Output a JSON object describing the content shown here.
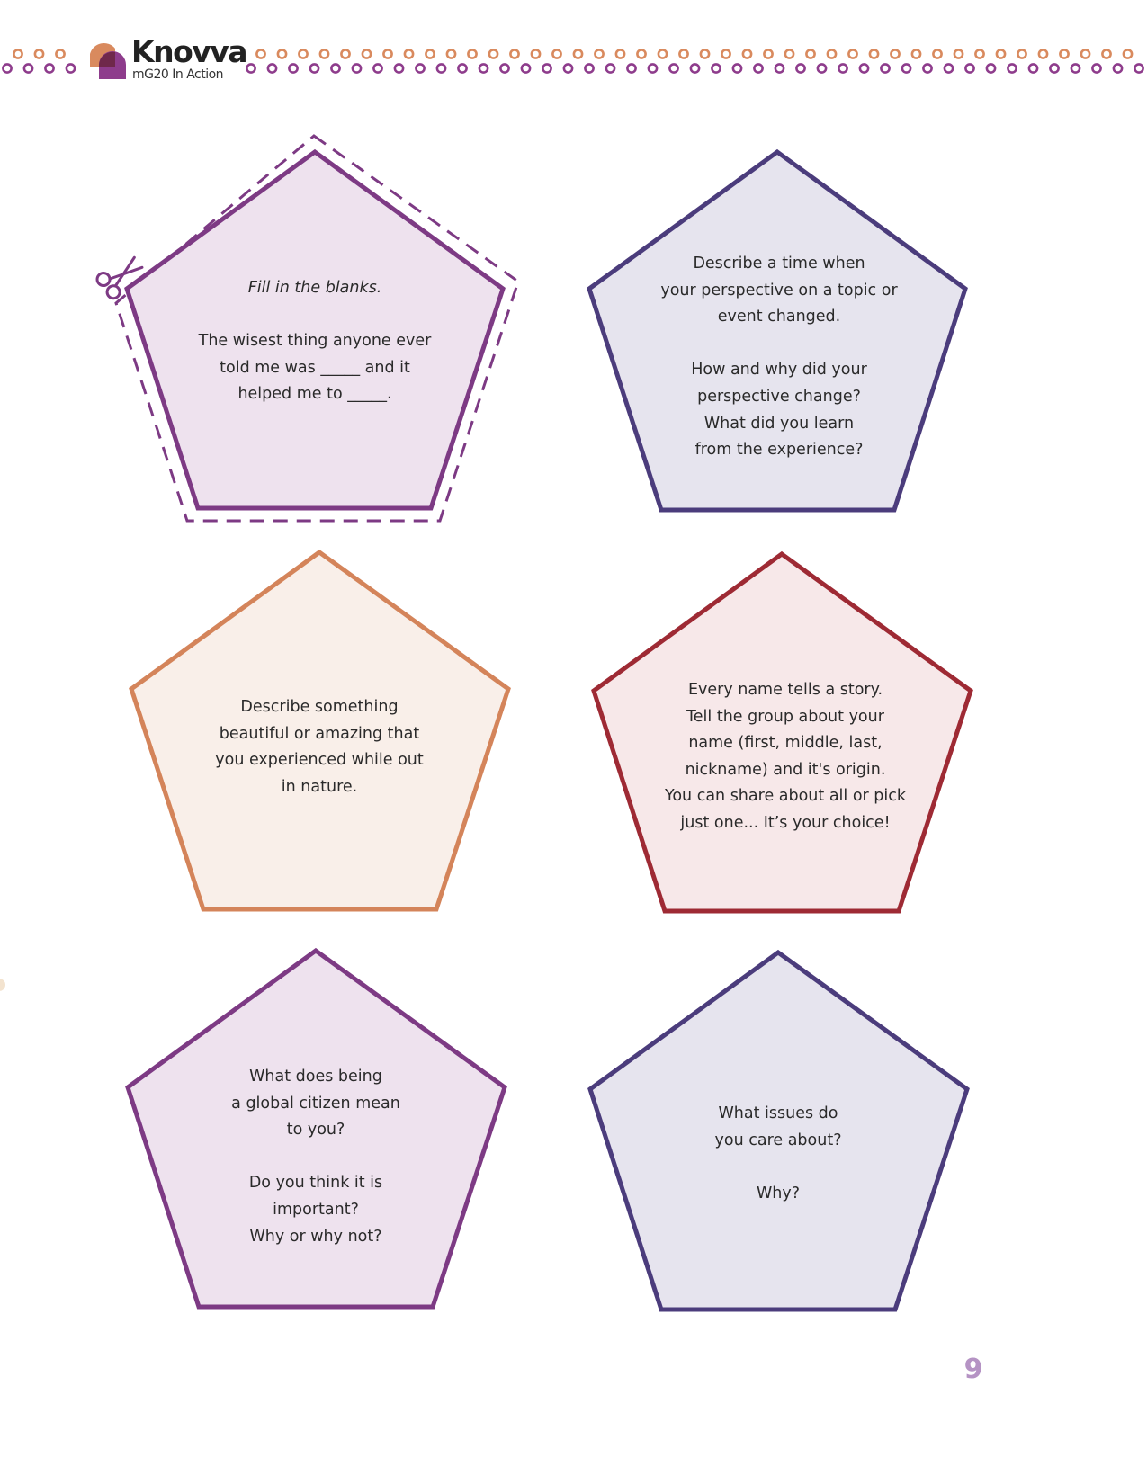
{
  "header": {
    "logo_name": "Knovva",
    "logo_tagline": "mG20 In Action"
  },
  "colors": {
    "purple": "#7d3a84",
    "indigo": "#4b3c7c",
    "orange": "#d4845a",
    "crimson": "#9e2a34",
    "dot_orange": "#d98a5e",
    "dot_purple": "#8e3c8c"
  },
  "cards": [
    {
      "color": "purple",
      "lines": [
        {
          "text": "Fill in the blanks.",
          "style": "italic"
        },
        {
          "text": ""
        },
        {
          "text": "The wisest thing anyone ever"
        },
        {
          "text": "told me was _____ and it"
        },
        {
          "text": "helped me to _____."
        }
      ]
    },
    {
      "color": "indigo",
      "lines": [
        {
          "text": "Describe a time when"
        },
        {
          "text": "your perspective on a topic or"
        },
        {
          "text": "event changed."
        },
        {
          "text": ""
        },
        {
          "text": "How and why did your"
        },
        {
          "text": "perspective change?"
        },
        {
          "text": "What did you learn"
        },
        {
          "text": "from the experience?"
        }
      ]
    },
    {
      "color": "orange",
      "lines": [
        {
          "text": "Describe something"
        },
        {
          "text": "beautiful or amazing that"
        },
        {
          "text": "you experienced while out"
        },
        {
          "text": "in nature."
        }
      ]
    },
    {
      "color": "crimson",
      "lines": [
        {
          "text": "Every name tells a story."
        },
        {
          "text": "Tell the group about your"
        },
        {
          "text": "name (first, middle, last,"
        },
        {
          "text": "nickname) and it's origin."
        },
        {
          "text": "You can share about all or pick"
        },
        {
          "text": "just one... It’s your choice!"
        }
      ]
    },
    {
      "color": "purple",
      "lines": [
        {
          "text": "What does being"
        },
        {
          "text": "a global citizen mean"
        },
        {
          "text": "to you?"
        },
        {
          "text": ""
        },
        {
          "text": "Do you think it is"
        },
        {
          "text": "important?"
        },
        {
          "text": "Why or why not?"
        }
      ]
    },
    {
      "color": "indigo",
      "lines": [
        {
          "text": "What issues do"
        },
        {
          "text": "you care about?"
        },
        {
          "text": ""
        },
        {
          "text": "Why?"
        }
      ]
    }
  ],
  "page_number": "9",
  "icons": {
    "cut_guide": "scissors-icon"
  }
}
